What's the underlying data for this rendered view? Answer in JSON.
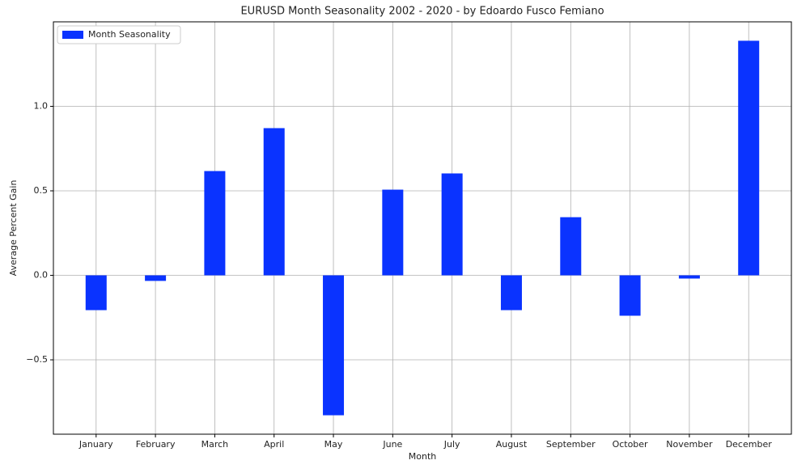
{
  "chart_data": {
    "type": "bar",
    "title": "EURUSD Month Seasonality 2002 - 2020  - by Edoardo Fusco Femiano",
    "x_label": "Month",
    "y_label": "Average Percent Gain",
    "categories": [
      "January",
      "February",
      "March",
      "April",
      "May",
      "June",
      "July",
      "August",
      "September",
      "October",
      "November",
      "December"
    ],
    "series": [
      {
        "name": "Month Seasonality",
        "color": "#0a33ff",
        "values": [
          -0.206,
          -0.033,
          0.617,
          0.871,
          -0.828,
          0.507,
          0.603,
          -0.206,
          0.344,
          -0.239,
          -0.019,
          1.388
        ]
      }
    ],
    "ylim": [
      -0.94,
      1.5
    ],
    "yticks": [
      {
        "value": -0.5,
        "label": "−0.5"
      },
      {
        "value": 0,
        "label": "0.0"
      },
      {
        "value": 0.5,
        "label": "0.5"
      },
      {
        "value": 1,
        "label": "1.0"
      }
    ],
    "grid": true,
    "legend": "upper-left"
  }
}
